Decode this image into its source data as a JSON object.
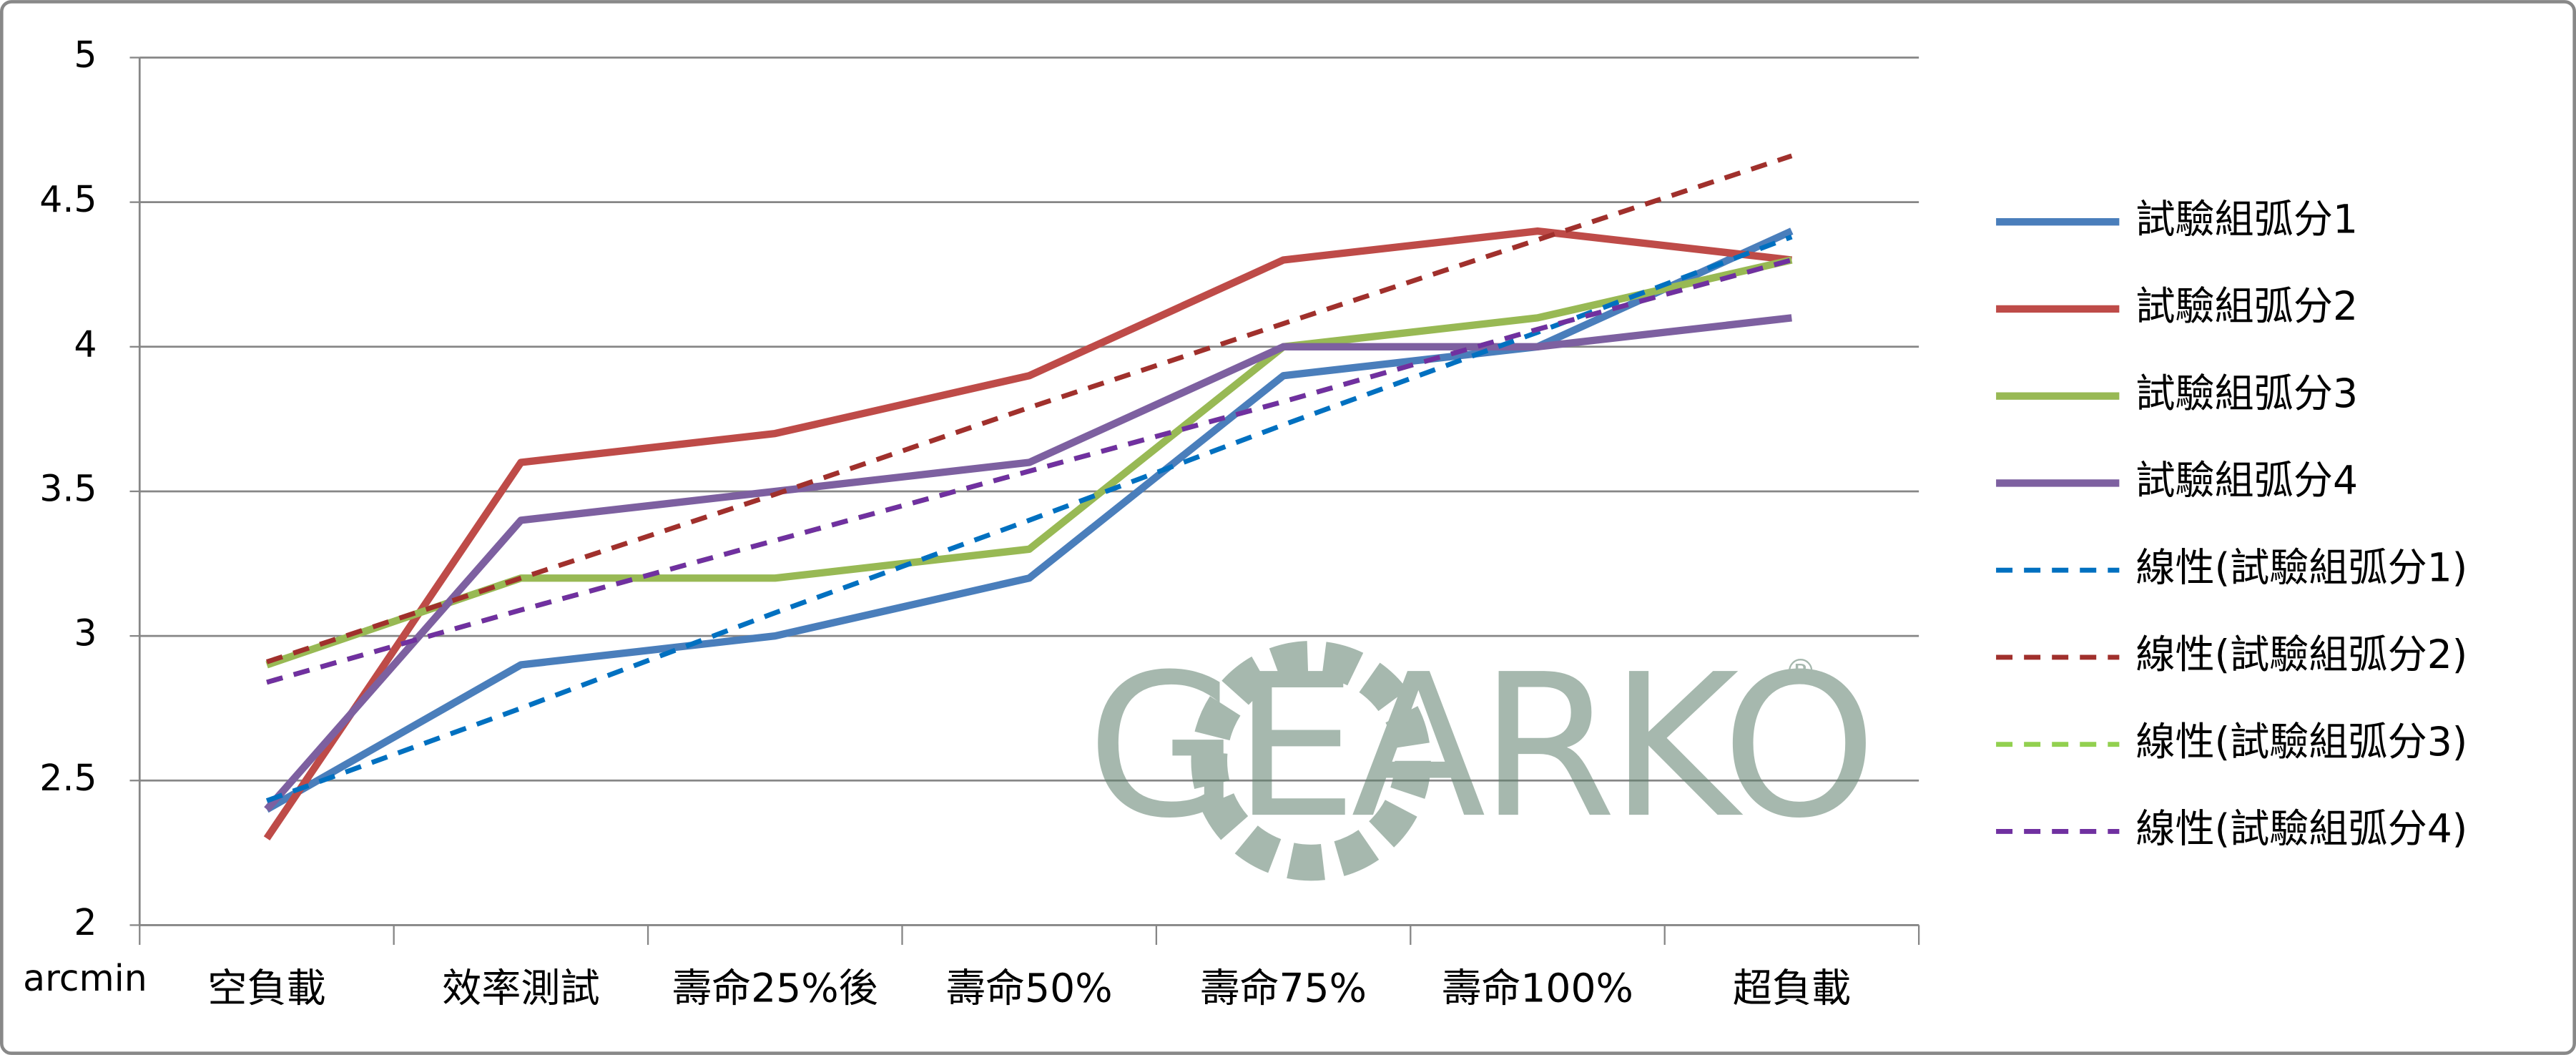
{
  "chart_data": {
    "type": "line",
    "y_label": "arcmin",
    "categories": [
      "空負載",
      "效率測試",
      "壽命25%後",
      "壽命50%",
      "壽命75%",
      "壽命100%",
      "超負載"
    ],
    "series": [
      {
        "name": "試驗組弧分1",
        "color": "#4a7ebb",
        "style": "solid",
        "values": [
          2.4,
          2.9,
          3.0,
          3.2,
          3.9,
          4.0,
          4.4
        ]
      },
      {
        "name": "試驗組弧分2",
        "color": "#be4b48",
        "style": "solid",
        "values": [
          2.3,
          3.6,
          3.7,
          3.9,
          4.3,
          4.4,
          4.3
        ]
      },
      {
        "name": "試驗組弧分3",
        "color": "#98b954",
        "style": "solid",
        "values": [
          2.9,
          3.2,
          3.2,
          3.3,
          4.0,
          4.1,
          4.3
        ]
      },
      {
        "name": "試驗組弧分4",
        "color": "#7d60a0",
        "style": "solid",
        "values": [
          2.4,
          3.4,
          3.5,
          3.6,
          4.0,
          4.0,
          4.1
        ]
      },
      {
        "name": "線性(試驗組弧分1)",
        "color": "#0070c0",
        "style": "dashed",
        "values": [
          2.43,
          2.75,
          3.08,
          3.4,
          3.73,
          4.05,
          4.38
        ]
      },
      {
        "name": "線性(試驗組弧分2)",
        "color": "#a0302c",
        "style": "dashed",
        "values": [
          2.91,
          3.2,
          3.49,
          3.79,
          4.08,
          4.37,
          4.66
        ]
      },
      {
        "name": "線性(試驗組弧分3)",
        "color": "#92d050",
        "style": "dashed",
        "values": [
          2.84,
          3.09,
          3.33,
          3.57,
          3.81,
          4.06,
          4.3
        ]
      },
      {
        "name": "線性(試驗組弧分4)",
        "color": "#7030a0",
        "style": "dashed",
        "values": [
          2.84,
          3.09,
          3.33,
          3.57,
          3.81,
          4.06,
          4.3
        ]
      }
    ],
    "ylim": [
      2,
      5
    ],
    "yticks": [
      2,
      2.5,
      3,
      3.5,
      4,
      4.5,
      5
    ],
    "grid": true,
    "legend": "right",
    "watermark": "GEARKO",
    "watermark_mark": "®"
  }
}
